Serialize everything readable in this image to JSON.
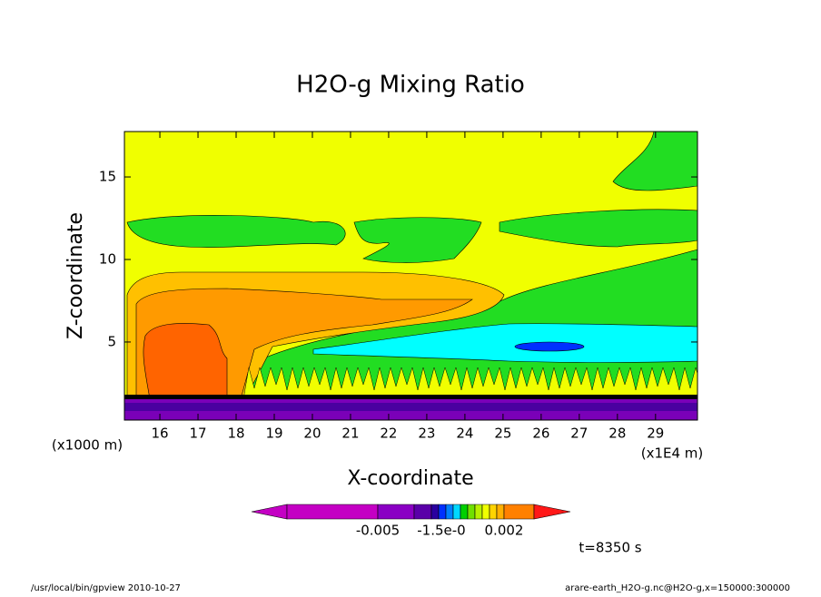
{
  "chart_data": {
    "type": "contour",
    "title": "H2O-g Mixing Ratio",
    "x_label": "X-coordinate",
    "y_label": "Z-coordinate",
    "x_unit_label": "(x1E4 m)",
    "y_unit_label": "(x1000 m)",
    "xlim": [
      15.07,
      30.1
    ],
    "xticks": [
      16,
      17,
      18,
      19,
      20,
      21,
      22,
      23,
      24,
      25,
      26,
      27,
      28,
      29
    ],
    "ylim": [
      0.27,
      17.75
    ],
    "yticks": [
      5,
      10,
      15
    ],
    "colorbar": {
      "colors": [
        "#c400c4",
        "#c400c4",
        "#8a00c4",
        "#5a00a8",
        "#2a00a0",
        "#0030ff",
        "#0080ff",
        "#00d8ff",
        "#00d000",
        "#70e000",
        "#b8f000",
        "#f0ff00",
        "#ffd400",
        "#ffb000",
        "#ff8000",
        "#ff1818"
      ],
      "ticks": [
        -0.005,
        {
          "value": -1.5e-05,
          "label": "-1.5e-0"
        },
        0.002
      ]
    },
    "time_label": "t=8350 s"
  },
  "footer": {
    "left": "/usr/local/bin/gpview  2010-10-27",
    "right": "arare-earth_H2O-g.nc@H2O-g,x=150000:300000"
  }
}
